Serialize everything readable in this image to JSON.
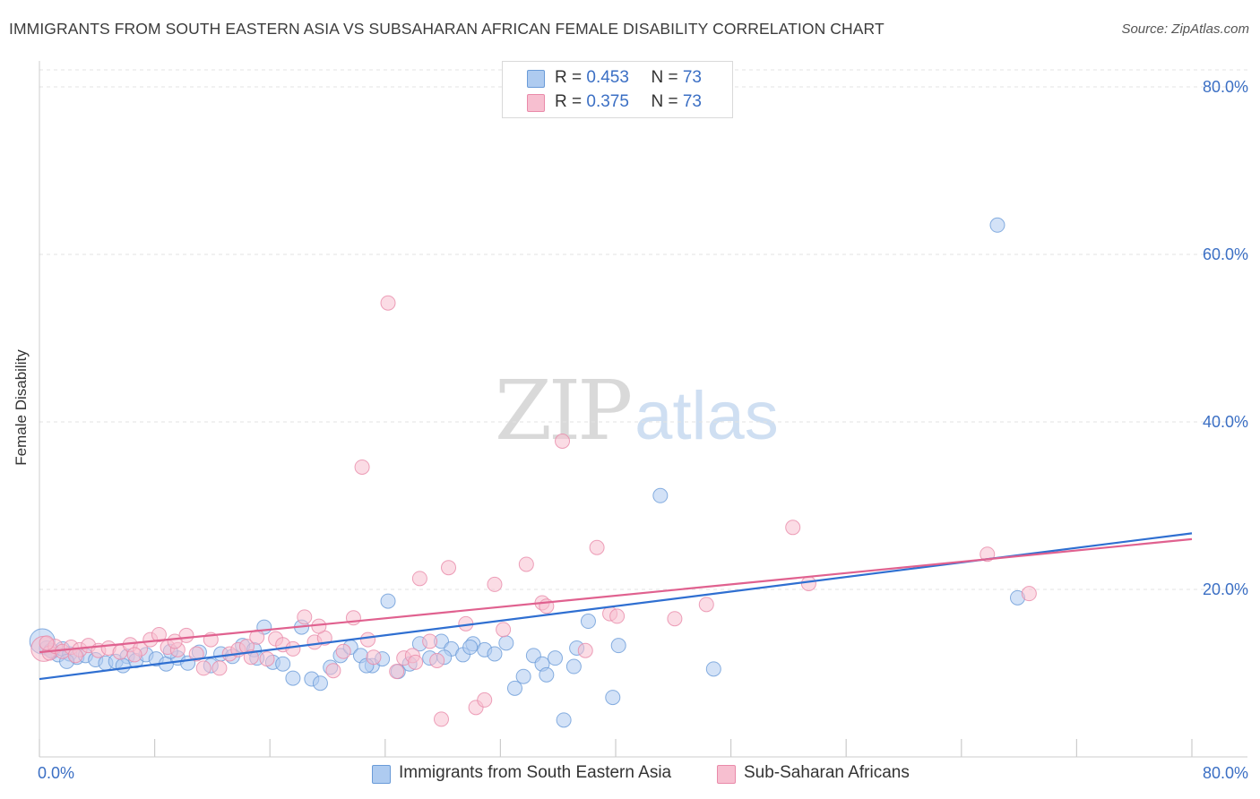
{
  "header": {
    "title": "IMMIGRANTS FROM SOUTH EASTERN ASIA VS SUBSAHARAN AFRICAN FEMALE DISABILITY CORRELATION CHART",
    "source": "Source: ZipAtlas.com"
  },
  "watermark": {
    "zip": "ZIP",
    "atlas": "atlas"
  },
  "legend": {
    "rows": [
      {
        "r_label": "R = ",
        "r_value": "0.453",
        "n_label": "N = ",
        "n_value": "73"
      },
      {
        "r_label": "R = ",
        "r_value": "0.375",
        "n_label": "N = ",
        "n_value": "73"
      }
    ]
  },
  "colors": {
    "blue_fill": "#aecbf0",
    "blue_stroke": "#6a9bd8",
    "blue_line": "#2f6fd1",
    "pink_fill": "#f7bfd0",
    "pink_stroke": "#e98aa9",
    "pink_line": "#e0618f",
    "tick_label": "#3b6fc4",
    "grid": "#e3e3e3"
  },
  "chart_data": {
    "type": "scatter",
    "title": "IMMIGRANTS FROM SOUTH EASTERN ASIA VS SUBSAHARAN AFRICAN FEMALE DISABILITY CORRELATION CHART",
    "xlabel": "",
    "ylabel": "Female Disability",
    "xlim": [
      0,
      80
    ],
    "ylim": [
      0,
      80
    ],
    "x_tick_labels": [
      "0.0%",
      "80.0%"
    ],
    "y_ticks": [
      20,
      40,
      60,
      80
    ],
    "y_tick_labels": [
      "20.0%",
      "40.0%",
      "60.0%",
      "80.0%"
    ],
    "grid": true,
    "legend_position": "top-center",
    "series": [
      {
        "name": "Immigrants from South Eastern Asia",
        "color": "#aecbf0",
        "r": 0.453,
        "n": 73,
        "trend": [
          [
            0,
            9.3
          ],
          [
            80,
            26.7
          ]
        ],
        "points": [
          [
            0.2,
            13.8
          ],
          [
            0.5,
            13.0
          ],
          [
            0.9,
            12.6
          ],
          [
            1.3,
            12.2
          ],
          [
            1.6,
            12.9
          ],
          [
            2.1,
            12.3
          ],
          [
            2.6,
            11.9
          ],
          [
            3.2,
            12.1
          ],
          [
            3.9,
            11.6
          ],
          [
            4.6,
            11.2
          ],
          [
            5.3,
            11.4
          ],
          [
            6.1,
            12.0
          ],
          [
            6.7,
            11.5
          ],
          [
            7.4,
            12.2
          ],
          [
            8.1,
            11.7
          ],
          [
            8.8,
            11.1
          ],
          [
            9.6,
            11.8
          ],
          [
            10.3,
            11.2
          ],
          [
            11.1,
            12.5
          ],
          [
            11.9,
            10.9
          ],
          [
            12.6,
            12.3
          ],
          [
            13.4,
            12.0
          ],
          [
            14.1,
            13.3
          ],
          [
            14.9,
            12.8
          ],
          [
            15.6,
            15.5
          ],
          [
            16.2,
            11.3
          ],
          [
            16.9,
            11.1
          ],
          [
            17.6,
            9.4
          ],
          [
            18.2,
            15.5
          ],
          [
            18.9,
            9.3
          ],
          [
            19.5,
            8.8
          ],
          [
            20.2,
            10.7
          ],
          [
            20.9,
            12.1
          ],
          [
            21.6,
            13.1
          ],
          [
            22.3,
            12.1
          ],
          [
            23.1,
            10.9
          ],
          [
            23.8,
            11.7
          ],
          [
            24.2,
            18.6
          ],
          [
            24.9,
            10.2
          ],
          [
            25.7,
            11.1
          ],
          [
            26.4,
            13.5
          ],
          [
            27.1,
            11.8
          ],
          [
            27.9,
            13.8
          ],
          [
            28.6,
            12.9
          ],
          [
            29.4,
            12.2
          ],
          [
            30.1,
            13.5
          ],
          [
            30.9,
            12.8
          ],
          [
            31.6,
            12.3
          ],
          [
            32.4,
            13.6
          ],
          [
            33.0,
            8.2
          ],
          [
            33.6,
            9.6
          ],
          [
            34.3,
            12.1
          ],
          [
            34.9,
            11.1
          ],
          [
            35.8,
            11.8
          ],
          [
            36.4,
            4.4
          ],
          [
            37.1,
            10.8
          ],
          [
            37.3,
            13.0
          ],
          [
            38.1,
            16.2
          ],
          [
            39.8,
            7.1
          ],
          [
            43.1,
            31.2
          ],
          [
            46.8,
            10.5
          ],
          [
            66.5,
            63.5
          ],
          [
            67.9,
            19.0
          ],
          [
            0.8,
            12.7
          ],
          [
            1.9,
            11.4
          ],
          [
            5.8,
            10.9
          ],
          [
            9.1,
            12.6
          ],
          [
            15.1,
            11.8
          ],
          [
            22.7,
            10.9
          ],
          [
            28.1,
            11.9
          ],
          [
            29.9,
            13.1
          ],
          [
            35.2,
            9.8
          ],
          [
            40.2,
            13.3
          ]
        ]
      },
      {
        "name": "Sub-Saharan Africans",
        "color": "#f7bfd0",
        "r": 0.375,
        "n": 73,
        "trend": [
          [
            0,
            12.5
          ],
          [
            80,
            26.0
          ]
        ],
        "points": [
          [
            0.3,
            12.9
          ],
          [
            0.7,
            12.4
          ],
          [
            1.1,
            13.2
          ],
          [
            1.6,
            12.6
          ],
          [
            2.2,
            13.1
          ],
          [
            2.8,
            12.8
          ],
          [
            3.4,
            13.3
          ],
          [
            4.1,
            12.7
          ],
          [
            4.8,
            13.0
          ],
          [
            5.6,
            12.5
          ],
          [
            6.3,
            13.4
          ],
          [
            7.0,
            12.9
          ],
          [
            7.7,
            14.0
          ],
          [
            8.3,
            14.6
          ],
          [
            8.9,
            13.1
          ],
          [
            9.6,
            12.8
          ],
          [
            10.2,
            14.5
          ],
          [
            10.9,
            12.3
          ],
          [
            11.4,
            10.6
          ],
          [
            11.9,
            14.0
          ],
          [
            12.5,
            10.6
          ],
          [
            13.2,
            12.3
          ],
          [
            13.8,
            12.8
          ],
          [
            14.4,
            13.2
          ],
          [
            15.1,
            14.3
          ],
          [
            15.8,
            11.7
          ],
          [
            16.4,
            14.1
          ],
          [
            16.9,
            13.4
          ],
          [
            17.6,
            12.9
          ],
          [
            18.4,
            16.7
          ],
          [
            19.1,
            13.7
          ],
          [
            19.8,
            14.2
          ],
          [
            20.4,
            10.3
          ],
          [
            21.1,
            12.6
          ],
          [
            21.8,
            16.6
          ],
          [
            22.4,
            34.6
          ],
          [
            22.8,
            14.0
          ],
          [
            23.2,
            11.9
          ],
          [
            24.2,
            54.2
          ],
          [
            24.8,
            10.2
          ],
          [
            25.3,
            11.8
          ],
          [
            25.9,
            12.1
          ],
          [
            26.4,
            21.3
          ],
          [
            27.1,
            13.8
          ],
          [
            27.6,
            11.5
          ],
          [
            28.4,
            22.6
          ],
          [
            29.6,
            15.9
          ],
          [
            30.3,
            5.9
          ],
          [
            30.9,
            6.8
          ],
          [
            31.6,
            20.6
          ],
          [
            32.2,
            15.2
          ],
          [
            33.8,
            23.0
          ],
          [
            34.9,
            18.4
          ],
          [
            35.2,
            18.0
          ],
          [
            36.3,
            37.7
          ],
          [
            37.9,
            12.7
          ],
          [
            38.7,
            25.0
          ],
          [
            39.6,
            17.1
          ],
          [
            40.1,
            16.8
          ],
          [
            44.1,
            16.5
          ],
          [
            46.3,
            18.2
          ],
          [
            52.3,
            27.4
          ],
          [
            53.4,
            20.7
          ],
          [
            65.8,
            24.2
          ],
          [
            68.7,
            19.5
          ],
          [
            0.5,
            13.6
          ],
          [
            2.5,
            12.1
          ],
          [
            6.6,
            12.2
          ],
          [
            9.4,
            13.8
          ],
          [
            14.7,
            11.9
          ],
          [
            19.4,
            15.6
          ],
          [
            26.1,
            11.3
          ],
          [
            27.9,
            4.5
          ]
        ]
      }
    ]
  },
  "bottom_legend": [
    {
      "label": "Immigrants from South Eastern Asia"
    },
    {
      "label": "Sub-Saharan Africans"
    }
  ]
}
